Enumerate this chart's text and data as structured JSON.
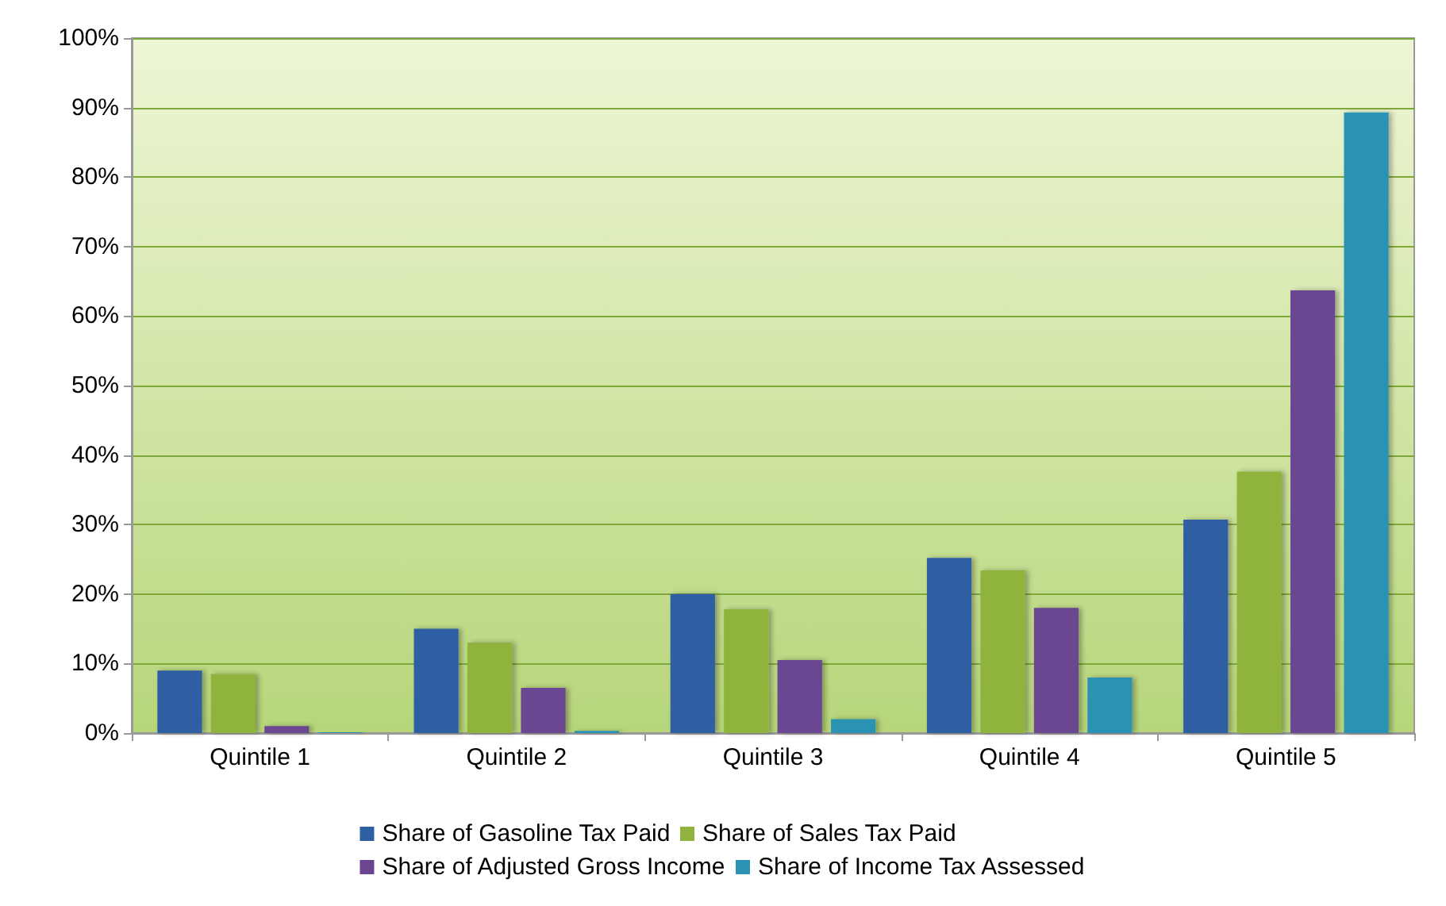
{
  "chart_data": {
    "type": "bar",
    "categories": [
      "Quintile 1",
      "Quintile 2",
      "Quintile 3",
      "Quintile 4",
      "Quintile 5"
    ],
    "series": [
      {
        "name": "Share of Gasoline Tax Paid",
        "color": "#2e5fa3",
        "values": [
          9,
          15,
          20,
          25.2,
          30.7
        ]
      },
      {
        "name": "Share of Sales Tax Paid",
        "color": "#8fb33c",
        "values": [
          8.5,
          13,
          17.8,
          23.4,
          37.6
        ]
      },
      {
        "name": "Share of Adjusted Gross Income",
        "color": "#6a4690",
        "values": [
          1,
          6.5,
          10.5,
          18,
          63.7
        ]
      },
      {
        "name": "Share of Income Tax Assessed",
        "color": "#2a93b3",
        "values": [
          0.1,
          0.3,
          2,
          8,
          89.3
        ]
      }
    ],
    "ylim": [
      0,
      100
    ],
    "yticks": [
      {
        "value": 0,
        "label": "0%"
      },
      {
        "value": 10,
        "label": "10%"
      },
      {
        "value": 20,
        "label": "20%"
      },
      {
        "value": 30,
        "label": "30%"
      },
      {
        "value": 40,
        "label": "40%"
      },
      {
        "value": 50,
        "label": "50%"
      },
      {
        "value": 60,
        "label": "60%"
      },
      {
        "value": 70,
        "label": "70%"
      },
      {
        "value": 80,
        "label": "80%"
      },
      {
        "value": 90,
        "label": "90%"
      },
      {
        "value": 100,
        "label": "100%"
      }
    ],
    "grid": "y",
    "legend": "bottom"
  }
}
